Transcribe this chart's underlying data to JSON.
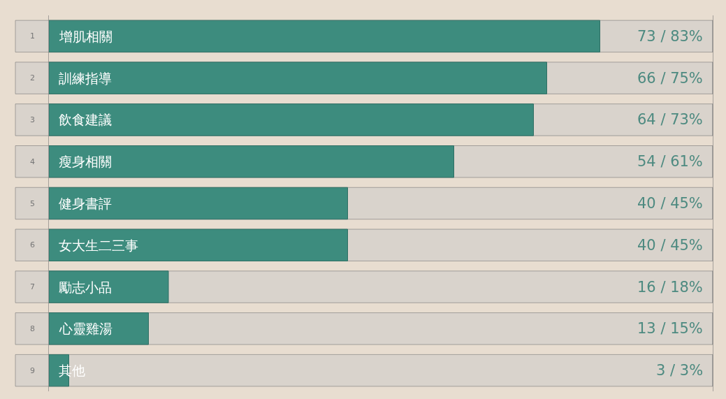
{
  "chart_data": {
    "type": "bar",
    "orientation": "horizontal",
    "categories": [
      "增肌相關",
      "訓練指導",
      "飲食建議",
      "瘦身相關",
      "健身書評",
      "女大生二三事",
      "勵志小品",
      "心靈雞湯",
      "其他"
    ],
    "values": [
      83,
      75,
      73,
      61,
      45,
      45,
      18,
      15,
      3
    ],
    "value_labels": [
      "73 / 83%",
      "66 / 75%",
      "64 / 73%",
      "54 / 61%",
      "40 / 45%",
      "40 / 45%",
      "16 / 18%",
      "13 / 15%",
      "3 / 3%"
    ],
    "annotations": [
      "1",
      "2",
      "3",
      "4",
      "5",
      "6",
      "7",
      "8",
      "9"
    ],
    "color": "#3d8c7e",
    "xlim": [
      0,
      100
    ],
    "tick_labels": false,
    "grid": false,
    "legend": false
  }
}
